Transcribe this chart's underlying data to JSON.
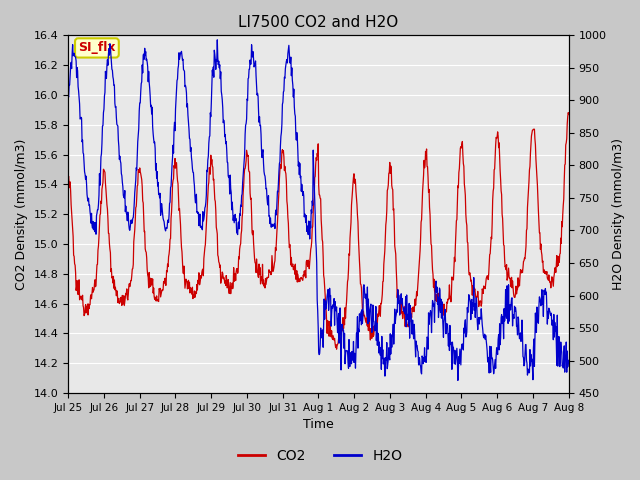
{
  "title": "LI7500 CO2 and H2O",
  "xlabel": "Time",
  "ylabel_left": "CO2 Density (mmol/m3)",
  "ylabel_right": "H2O Density (mmol/m3)",
  "ylim_left": [
    14.0,
    16.4
  ],
  "ylim_right": [
    450,
    1000
  ],
  "yticks_left": [
    14.0,
    14.2,
    14.4,
    14.6,
    14.8,
    15.0,
    15.2,
    15.4,
    15.6,
    15.8,
    16.0,
    16.2,
    16.4
  ],
  "yticks_right": [
    450,
    500,
    550,
    600,
    650,
    700,
    750,
    800,
    850,
    900,
    950,
    1000
  ],
  "xtick_labels": [
    "Jul 25",
    "Jul 26",
    "Jul 27",
    "Jul 28",
    "Jul 29",
    "Jul 30",
    "Jul 31",
    "Aug 1",
    "Aug 2",
    "Aug 3",
    "Aug 4",
    "Aug 5",
    "Aug 6",
    "Aug 7",
    "Aug 8"
  ],
  "annotation_text": "SI_flx",
  "annotation_bg": "#ffffcc",
  "annotation_border": "#cccc00",
  "annotation_fg": "#cc0000",
  "co2_color": "#cc0000",
  "h2o_color": "#0000cc",
  "fig_bg": "#c8c8c8",
  "plot_bg": "#e8e8e8",
  "grid_color": "#ffffff",
  "figsize": [
    6.4,
    4.8
  ],
  "dpi": 100
}
